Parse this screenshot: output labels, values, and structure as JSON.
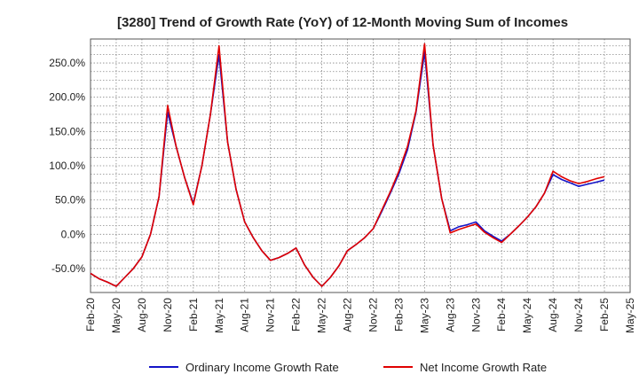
{
  "chart_data": {
    "type": "line",
    "title": "[3280]  Trend of Growth Rate (YoY) of 12-Month Moving Sum of Incomes",
    "xlabel": "",
    "ylabel": "",
    "ylim": [
      -85,
      285
    ],
    "yticks": [
      -50,
      0,
      50,
      100,
      150,
      200,
      250
    ],
    "ytick_labels": [
      "-50.0%",
      "0.0%",
      "50.0%",
      "100.0%",
      "150.0%",
      "200.0%",
      "250.0%"
    ],
    "xtick_labels": [
      "Feb-20",
      "May-20",
      "Aug-20",
      "Nov-20",
      "Feb-21",
      "May-21",
      "Aug-21",
      "Nov-21",
      "Feb-22",
      "May-22",
      "Aug-22",
      "Nov-22",
      "Feb-23",
      "May-23",
      "Aug-23",
      "Nov-23",
      "Feb-24",
      "May-24",
      "Aug-24",
      "Nov-24",
      "Feb-25",
      "May-25"
    ],
    "grid": true,
    "legend_position": "bottom",
    "x": [
      "Feb-20",
      "Mar-20",
      "Apr-20",
      "May-20",
      "Jun-20",
      "Jul-20",
      "Aug-20",
      "Sep-20",
      "Oct-20",
      "Nov-20",
      "Dec-20",
      "Jan-21",
      "Feb-21",
      "Mar-21",
      "Apr-21",
      "May-21",
      "Jun-21",
      "Jul-21",
      "Aug-21",
      "Sep-21",
      "Oct-21",
      "Nov-21",
      "Dec-21",
      "Jan-22",
      "Feb-22",
      "Mar-22",
      "Apr-22",
      "May-22",
      "Jun-22",
      "Jul-22",
      "Aug-22",
      "Sep-22",
      "Oct-22",
      "Nov-22",
      "Dec-22",
      "Jan-23",
      "Feb-23",
      "Mar-23",
      "Apr-23",
      "May-23",
      "Jun-23",
      "Jul-23",
      "Aug-23",
      "Sep-23",
      "Oct-23",
      "Nov-23",
      "Dec-23",
      "Jan-24",
      "Feb-24",
      "Mar-24",
      "Apr-24",
      "May-24",
      "Jun-24",
      "Jul-24",
      "Aug-24",
      "Sep-24",
      "Oct-24",
      "Nov-24",
      "Dec-24",
      "Jan-25",
      "Feb-25"
    ],
    "series": [
      {
        "name": "Ordinary Income Growth Rate",
        "color": "#1414c8",
        "values": [
          -57,
          -65,
          -70,
          -76,
          -63,
          -50,
          -33,
          0,
          55,
          178,
          128,
          82,
          45,
          100,
          175,
          262,
          135,
          65,
          18,
          -5,
          -24,
          -38,
          -34,
          -28,
          -20,
          -45,
          -63,
          -76,
          -63,
          -46,
          -24,
          -15,
          -5,
          8,
          33,
          60,
          88,
          123,
          178,
          266,
          130,
          52,
          5,
          11,
          14,
          18,
          5,
          -3,
          -10,
          0,
          12,
          25,
          40,
          60,
          87,
          80,
          75,
          70,
          73,
          76,
          79
        ]
      },
      {
        "name": "Net Income Growth Rate",
        "color": "#e00000",
        "values": [
          -57,
          -65,
          -70,
          -76,
          -63,
          -50,
          -33,
          0,
          55,
          188,
          128,
          82,
          43,
          100,
          175,
          275,
          135,
          65,
          18,
          -5,
          -24,
          -38,
          -34,
          -28,
          -20,
          -45,
          -63,
          -76,
          -63,
          -46,
          -24,
          -15,
          -5,
          8,
          35,
          62,
          92,
          128,
          180,
          278,
          130,
          52,
          2,
          7,
          11,
          15,
          3,
          -5,
          -12,
          0,
          12,
          25,
          40,
          60,
          92,
          84,
          78,
          74,
          77,
          81,
          84
        ]
      }
    ]
  }
}
